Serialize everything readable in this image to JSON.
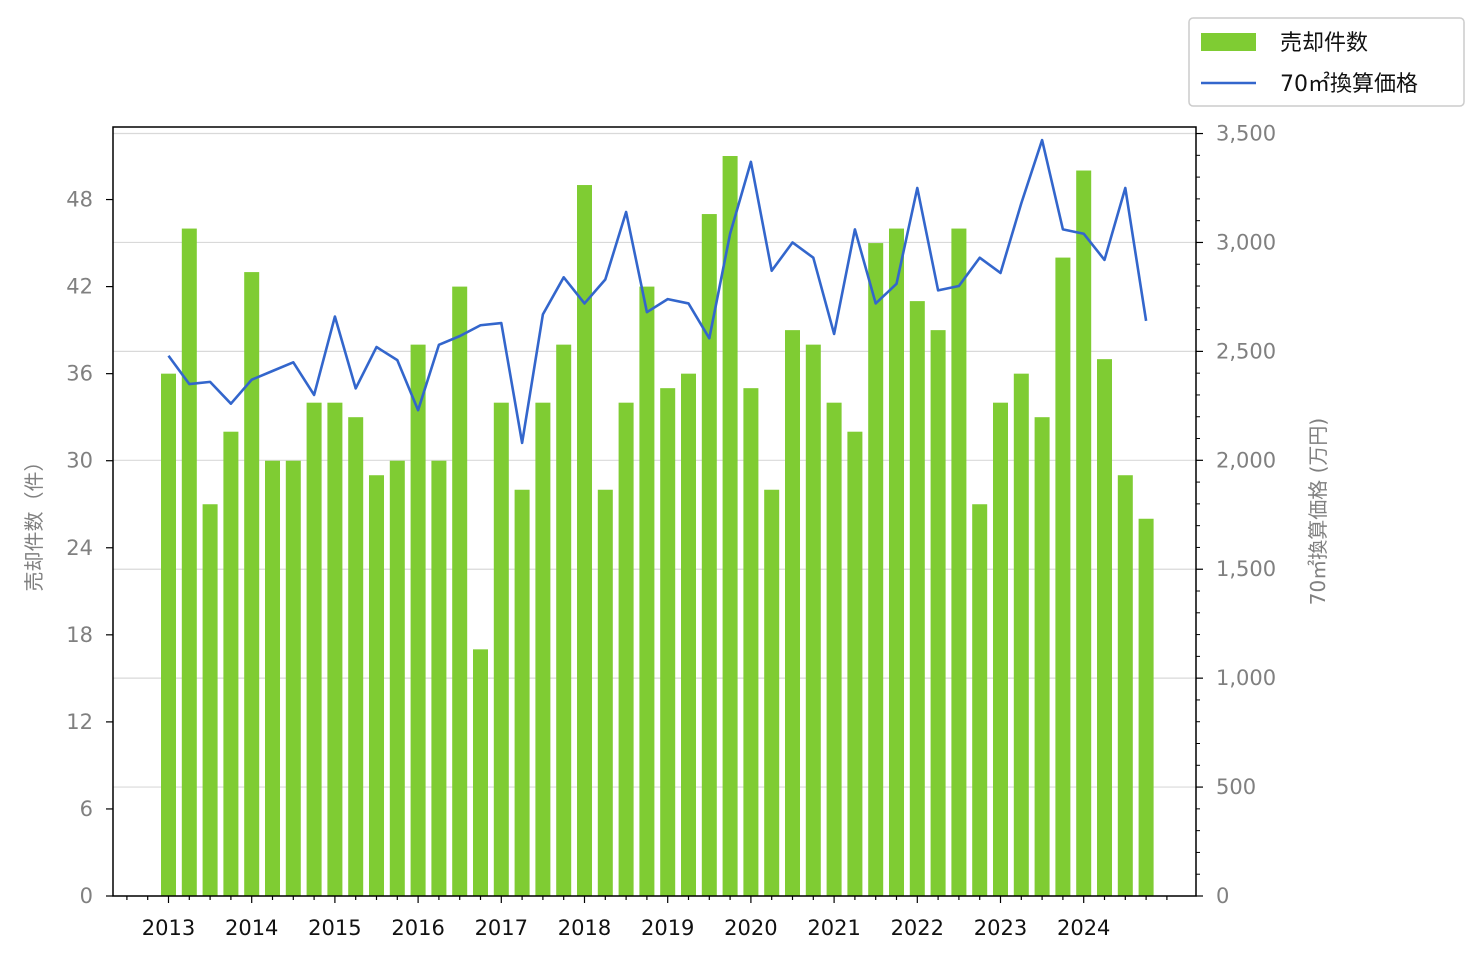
{
  "chart_data": {
    "type": "bar",
    "quarters": [
      "2013Q1",
      "2013Q2",
      "2013Q3",
      "2013Q4",
      "2014Q1",
      "2014Q2",
      "2014Q3",
      "2014Q4",
      "2015Q1",
      "2015Q2",
      "2015Q3",
      "2015Q4",
      "2016Q1",
      "2016Q2",
      "2016Q3",
      "2016Q4",
      "2017Q1",
      "2017Q2",
      "2017Q3",
      "2017Q4",
      "2018Q1",
      "2018Q2",
      "2018Q3",
      "2018Q4",
      "2019Q1",
      "2019Q2",
      "2019Q3",
      "2019Q4",
      "2020Q1",
      "2020Q2",
      "2020Q3",
      "2020Q4",
      "2021Q1",
      "2021Q2",
      "2021Q3",
      "2021Q4",
      "2022Q1",
      "2022Q2",
      "2022Q3",
      "2022Q4",
      "2023Q1",
      "2023Q2",
      "2023Q3",
      "2023Q4",
      "2024Q1",
      "2024Q2",
      "2024Q3",
      "2024Q4"
    ],
    "x_tick_labels": [
      "2013",
      "2014",
      "2015",
      "2016",
      "2017",
      "2018",
      "2019",
      "2020",
      "2021",
      "2022",
      "2023",
      "2024"
    ],
    "series": [
      {
        "name": "売却件数",
        "type": "bar",
        "axis": "left",
        "color": "#7fcc33",
        "values": [
          36,
          46,
          27,
          32,
          43,
          30,
          30,
          34,
          34,
          33,
          29,
          30,
          38,
          30,
          42,
          17,
          34,
          28,
          34,
          38,
          49,
          28,
          34,
          42,
          35,
          36,
          47,
          51,
          35,
          28,
          39,
          38,
          34,
          32,
          45,
          46,
          41,
          39,
          46,
          27,
          34,
          36,
          33,
          44,
          50,
          37,
          29,
          26
        ]
      },
      {
        "name": "70㎡換算価格",
        "type": "line",
        "axis": "right",
        "color": "#3366cc",
        "values": [
          2480,
          2350,
          2360,
          2260,
          2370,
          2410,
          2450,
          2300,
          2660,
          2330,
          2520,
          2460,
          2230,
          2530,
          2570,
          2620,
          2630,
          2080,
          2670,
          2840,
          2720,
          2830,
          3140,
          2680,
          2740,
          2720,
          2560,
          3040,
          3370,
          2870,
          3000,
          2930,
          2580,
          3060,
          2720,
          2810,
          3250,
          2780,
          2800,
          2930,
          2860,
          3180,
          3470,
          3060,
          3040,
          2920,
          3250,
          2640
        ]
      }
    ],
    "left_axis": {
      "label": "売却件数（件）",
      "ylim": [
        0,
        53
      ],
      "ticks": [
        "0",
        "6",
        "12",
        "18",
        "24",
        "30",
        "36",
        "42",
        "48"
      ]
    },
    "right_axis": {
      "label": "70㎡換算価格 (万円)",
      "ylim": [
        0,
        3530
      ],
      "ticks": [
        "0",
        "500",
        "1,000",
        "1,500",
        "2,000",
        "2,500",
        "3,000",
        "3,500"
      ]
    },
    "grid": true,
    "legend_position": "top-right"
  }
}
